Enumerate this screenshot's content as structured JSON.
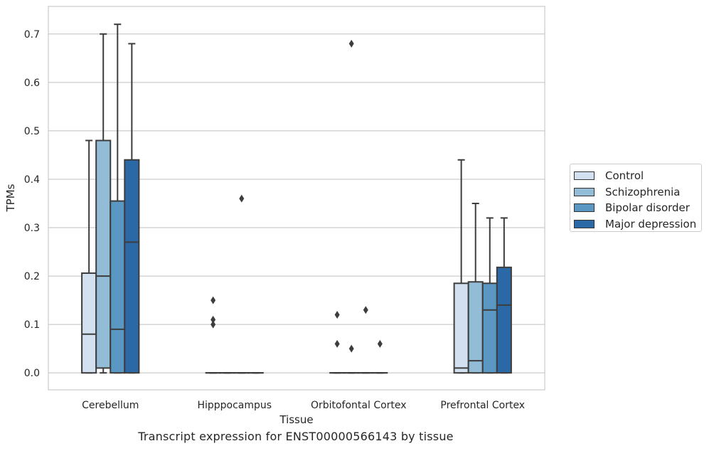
{
  "chart_data": {
    "type": "box",
    "xlabel": "Tissue",
    "ylabel": "TPMs",
    "ylim": [
      -0.035,
      0.757
    ],
    "yticks": [
      0.0,
      0.1,
      0.2,
      0.3,
      0.4,
      0.5,
      0.6,
      0.7
    ],
    "ytick_labels": [
      "0.0",
      "0.1",
      "0.2",
      "0.3",
      "0.4",
      "0.5",
      "0.6",
      "0.7"
    ],
    "grid": "horizontal",
    "legend_position": "right",
    "categories": [
      "Cerebellum",
      "Hipppocampus",
      "Orbitofontal Cortex",
      "Prefrontal Cortex"
    ],
    "series": [
      {
        "name": "Control",
        "color": "#d2e0ef",
        "boxes": [
          {
            "min": 0.0,
            "q1": 0.0,
            "median": 0.08,
            "q3": 0.206,
            "max": 0.48,
            "outliers": []
          },
          {
            "min": 0.0,
            "q1": 0.0,
            "median": 0.0,
            "q3": 0.0,
            "max": 0.0,
            "outliers": [
              0.15,
              0.11,
              0.1
            ]
          },
          {
            "min": 0.0,
            "q1": 0.0,
            "median": 0.0,
            "q3": 0.0,
            "max": 0.0,
            "outliers": [
              0.12,
              0.06
            ]
          },
          {
            "min": 0.0,
            "q1": 0.0,
            "median": 0.01,
            "q3": 0.185,
            "max": 0.44,
            "outliers": []
          }
        ]
      },
      {
        "name": "Schizophrenia",
        "color": "#93bdd6",
        "boxes": [
          {
            "min": 0.0,
            "q1": 0.01,
            "median": 0.2,
            "q3": 0.48,
            "max": 0.7,
            "outliers": []
          },
          {
            "min": 0.0,
            "q1": 0.0,
            "median": 0.0,
            "q3": 0.0,
            "max": 0.0,
            "outliers": []
          },
          {
            "min": 0.0,
            "q1": 0.0,
            "median": 0.0,
            "q3": 0.0,
            "max": 0.0,
            "outliers": [
              0.68,
              0.05
            ]
          },
          {
            "min": 0.0,
            "q1": 0.0,
            "median": 0.025,
            "q3": 0.188,
            "max": 0.35,
            "outliers": []
          }
        ]
      },
      {
        "name": "Bipolar disorder",
        "color": "#5a97c2",
        "boxes": [
          {
            "min": 0.0,
            "q1": 0.0,
            "median": 0.09,
            "q3": 0.355,
            "max": 0.72,
            "outliers": []
          },
          {
            "min": 0.0,
            "q1": 0.0,
            "median": 0.0,
            "q3": 0.0,
            "max": 0.0,
            "outliers": [
              0.36
            ]
          },
          {
            "min": 0.0,
            "q1": 0.0,
            "median": 0.0,
            "q3": 0.0,
            "max": 0.0,
            "outliers": [
              0.13
            ]
          },
          {
            "min": 0.0,
            "q1": 0.0,
            "median": 0.13,
            "q3": 0.185,
            "max": 0.32,
            "outliers": []
          }
        ]
      },
      {
        "name": "Major depression",
        "color": "#2a69a5",
        "boxes": [
          {
            "min": 0.0,
            "q1": 0.0,
            "median": 0.27,
            "q3": 0.44,
            "max": 0.68,
            "outliers": []
          },
          {
            "min": 0.0,
            "q1": 0.0,
            "median": 0.0,
            "q3": 0.0,
            "max": 0.0,
            "outliers": []
          },
          {
            "min": 0.0,
            "q1": 0.0,
            "median": 0.0,
            "q3": 0.0,
            "max": 0.0,
            "outliers": [
              0.06
            ]
          },
          {
            "min": 0.0,
            "q1": 0.0,
            "median": 0.14,
            "q3": 0.218,
            "max": 0.32,
            "outliers": []
          }
        ]
      }
    ],
    "caption": "Transcript expression for ENST00000566143 by tissue"
  }
}
